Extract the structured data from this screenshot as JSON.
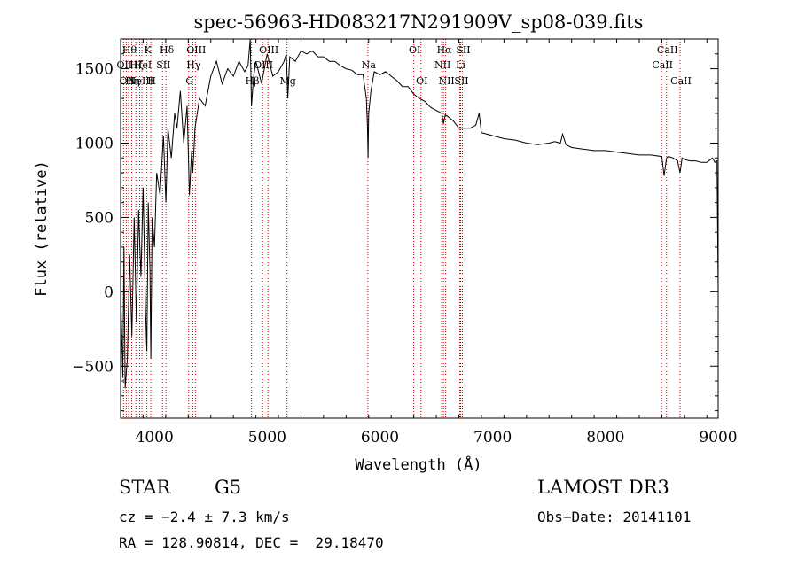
{
  "chart_data": {
    "type": "line",
    "title": "spec-56963-HD083217N291909V_sp08-039.fits",
    "xlabel": "Wavelength (Å)",
    "ylabel": "Flux (relative)",
    "xlim": [
      3700,
      9000
    ],
    "ylim": [
      -850,
      1700
    ],
    "x_ticks": [
      4000,
      5000,
      6000,
      7000,
      8000,
      9000
    ],
    "x_tick_labels": [
      "4000",
      "5000",
      "6000",
      "7000",
      "8000",
      "9000"
    ],
    "y_ticks": [
      -500,
      0,
      500,
      1000,
      1500
    ],
    "y_tick_labels": [
      "−500",
      "0",
      "500",
      "1000",
      "1500"
    ],
    "series": [
      {
        "name": "flux",
        "x": [
          3700,
          3720,
          3730,
          3740,
          3760,
          3780,
          3800,
          3820,
          3840,
          3860,
          3880,
          3900,
          3920,
          3933,
          3945,
          3960,
          3968,
          3980,
          4000,
          4020,
          4050,
          4080,
          4102,
          4120,
          4150,
          4180,
          4200,
          4230,
          4260,
          4290,
          4310,
          4330,
          4340,
          4360,
          4400,
          4450,
          4500,
          4550,
          4600,
          4650,
          4700,
          4750,
          4800,
          4830,
          4850,
          4861,
          4880,
          4900,
          4950,
          5000,
          5050,
          5100,
          5150,
          5170,
          5183,
          5200,
          5250,
          5300,
          5350,
          5400,
          5450,
          5500,
          5550,
          5600,
          5650,
          5700,
          5750,
          5800,
          5850,
          5880,
          5890,
          5895,
          5900,
          5920,
          5950,
          6000,
          6050,
          6100,
          6150,
          6200,
          6250,
          6300,
          6350,
          6400,
          6450,
          6500,
          6550,
          6563,
          6580,
          6600,
          6650,
          6700,
          6750,
          6800,
          6850,
          6880,
          6900,
          6950,
          7000,
          7100,
          7200,
          7300,
          7400,
          7500,
          7550,
          7600,
          7620,
          7650,
          7700,
          7800,
          7900,
          8000,
          8100,
          8200,
          8300,
          8400,
          8500,
          8520,
          8542,
          8560,
          8600,
          8640,
          8662,
          8680,
          8700,
          8750,
          8800,
          8850,
          8900,
          8950,
          8970,
          8990,
          9000
        ],
        "y": [
          0,
          -580,
          300,
          -650,
          -450,
          250,
          -300,
          500,
          -200,
          550,
          100,
          700,
          -100,
          -400,
          600,
          150,
          -450,
          500,
          300,
          800,
          650,
          1050,
          600,
          1100,
          900,
          1200,
          1100,
          1350,
          1000,
          1250,
          650,
          950,
          800,
          1100,
          1300,
          1250,
          1450,
          1550,
          1400,
          1500,
          1450,
          1550,
          1480,
          1520,
          1700,
          1250,
          1450,
          1550,
          1400,
          1600,
          1450,
          1480,
          1550,
          1600,
          1300,
          1580,
          1550,
          1620,
          1600,
          1620,
          1580,
          1580,
          1550,
          1550,
          1520,
          1500,
          1490,
          1460,
          1460,
          1300,
          1100,
          900,
          1200,
          1350,
          1480,
          1460,
          1480,
          1450,
          1420,
          1380,
          1380,
          1330,
          1300,
          1280,
          1240,
          1220,
          1200,
          1130,
          1190,
          1180,
          1150,
          1100,
          1100,
          1100,
          1120,
          1200,
          1070,
          1060,
          1050,
          1030,
          1020,
          1000,
          990,
          1000,
          1010,
          1000,
          1060,
          990,
          970,
          960,
          950,
          950,
          940,
          930,
          920,
          920,
          910,
          780,
          900,
          910,
          900,
          880,
          800,
          900,
          890,
          880,
          880,
          870,
          870,
          900,
          870,
          880,
          0
        ]
      }
    ],
    "line_markers": [
      {
        "x": 3726,
        "label": "OII",
        "row": 2
      },
      {
        "x": 3750,
        "label": "OII",
        "row": 3
      },
      {
        "x": 3771,
        "label": "Hθ",
        "row": 1
      },
      {
        "x": 3798,
        "label": "Hη",
        "row": 3
      },
      {
        "x": 3835,
        "label": "Hζ",
        "row": 2
      },
      {
        "x": 3869,
        "label": "NeIII",
        "row": 3
      },
      {
        "x": 3889,
        "label": "HeI",
        "row": 2
      },
      {
        "x": 3933,
        "label": "K",
        "row": 1
      },
      {
        "x": 3968,
        "label": "H",
        "row": 3
      },
      {
        "x": 4072,
        "label": "SII",
        "row": 2
      },
      {
        "x": 4102,
        "label": "Hδ",
        "row": 1
      },
      {
        "x": 4304,
        "label": "G",
        "row": 3
      },
      {
        "x": 4340,
        "label": "Hγ",
        "row": 2
      },
      {
        "x": 4363,
        "label": "OIII",
        "row": 1
      },
      {
        "x": 4861,
        "label": "Hβ",
        "row": 3
      },
      {
        "x": 4959,
        "label": "OIII",
        "row": 2
      },
      {
        "x": 5007,
        "label": "OIII",
        "row": 1
      },
      {
        "x": 5176,
        "label": "Mg",
        "row": 3
      },
      {
        "x": 5893,
        "label": "Na",
        "row": 2
      },
      {
        "x": 6300,
        "label": "OI",
        "row": 1
      },
      {
        "x": 6364,
        "label": "OI",
        "row": 3
      },
      {
        "x": 6548,
        "label": "NII",
        "row": 2
      },
      {
        "x": 6563,
        "label": "Hα",
        "row": 1
      },
      {
        "x": 6583,
        "label": "NII",
        "row": 3
      },
      {
        "x": 6708,
        "label": "Li",
        "row": 2
      },
      {
        "x": 6716,
        "label": "SII",
        "row": 3
      },
      {
        "x": 6731,
        "label": "SII",
        "row": 1
      },
      {
        "x": 8498,
        "label": "CaII",
        "row": 2
      },
      {
        "x": 8542,
        "label": "CaII",
        "row": 1
      },
      {
        "x": 8662,
        "label": "CaII",
        "row": 3
      }
    ],
    "marker_color": "#cc0000"
  },
  "info": {
    "object_class": "STAR",
    "subclass": "G5",
    "survey": "LAMOST DR3",
    "velocity": "cz = −2.4 ± 7.3 km/s",
    "obs_date": "Obs−Date: 20141101",
    "coords": "RA = 128.90814, DEC =  29.18470"
  }
}
